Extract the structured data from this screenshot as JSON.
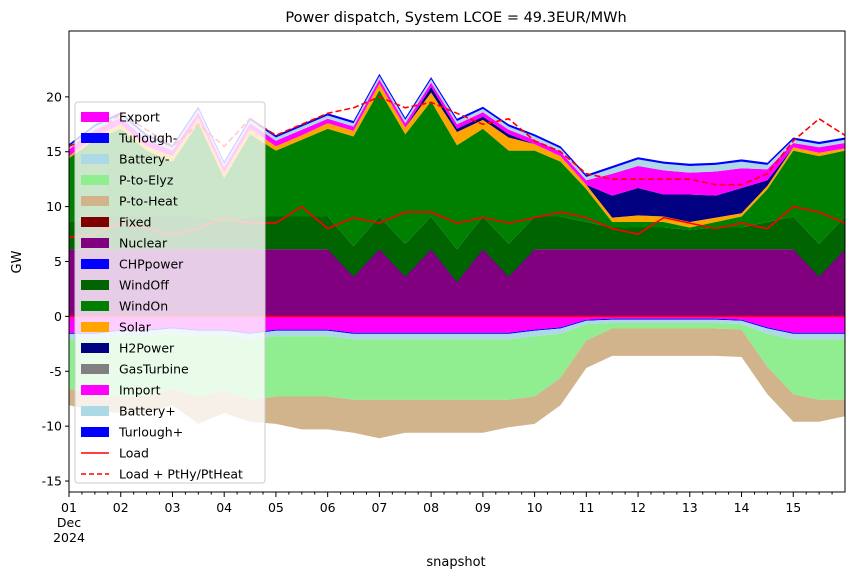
{
  "chart_data": {
    "type": "area",
    "title": "Power dispatch, System LCOE = 49.3EUR/MWh",
    "xlabel": "snapshot",
    "ylabel": "GW",
    "ylim": [
      -16,
      26
    ],
    "xlim": [
      0,
      15
    ],
    "yticks": [
      -15,
      -10,
      -5,
      0,
      5,
      10,
      15,
      20
    ],
    "x_tick_labels": [
      {
        "day": 0,
        "lines": [
          "01",
          "Dec",
          "2024"
        ]
      },
      {
        "day": 1,
        "lines": [
          "02"
        ]
      },
      {
        "day": 2,
        "lines": [
          "03"
        ]
      },
      {
        "day": 3,
        "lines": [
          "04"
        ]
      },
      {
        "day": 4,
        "lines": [
          "05"
        ]
      },
      {
        "day": 5,
        "lines": [
          "06"
        ]
      },
      {
        "day": 6,
        "lines": [
          "07"
        ]
      },
      {
        "day": 7,
        "lines": [
          "08"
        ]
      },
      {
        "day": 8,
        "lines": [
          "09"
        ]
      },
      {
        "day": 9,
        "lines": [
          "10"
        ]
      },
      {
        "day": 10,
        "lines": [
          "11"
        ]
      },
      {
        "day": 11,
        "lines": [
          "12"
        ]
      },
      {
        "day": 12,
        "lines": [
          "13"
        ]
      },
      {
        "day": 13,
        "lines": [
          "14"
        ]
      },
      {
        "day": 14,
        "lines": [
          "15"
        ]
      }
    ],
    "legend_position": "left",
    "grid": false,
    "x": [
      0,
      0.5,
      1,
      1.5,
      2,
      2.5,
      3,
      3.5,
      4,
      4.5,
      5,
      5.5,
      6,
      6.5,
      7,
      7.5,
      8,
      8.5,
      9,
      9.5,
      10,
      10.5,
      11,
      11.5,
      12,
      12.5,
      13,
      13.5,
      14,
      14.5,
      15
    ],
    "positive_series": [
      {
        "name": "Nuclear",
        "color": "#800080",
        "values": [
          6.1,
          6.1,
          6.1,
          6.1,
          6.1,
          6.1,
          6.1,
          6.1,
          6.1,
          6.1,
          6.1,
          6.1,
          6.1,
          6.1,
          6.1,
          6.1,
          6.1,
          6.1,
          6.1,
          6.1,
          6.1,
          6.1,
          6.1,
          6.1,
          6.1,
          6.1,
          6.1,
          6.1,
          6.1,
          6.1,
          6.1
        ]
      },
      {
        "name": "CHPpower",
        "color": "#0000ff",
        "values": [
          0,
          0,
          0,
          0,
          0,
          0,
          0,
          0,
          0,
          0,
          0,
          -2.5,
          0,
          -2.5,
          0,
          -3,
          0,
          -2.5,
          0,
          0,
          0,
          0,
          0,
          0,
          0,
          0,
          0,
          0,
          0,
          -2.5,
          0
        ]
      },
      {
        "name": "WindOff",
        "color": "#006400",
        "values": [
          2.5,
          3,
          3,
          3,
          3,
          3,
          2.5,
          3,
          3,
          3,
          3,
          2.8,
          3,
          3,
          3,
          3,
          3,
          3,
          3,
          3,
          2.5,
          2,
          2,
          2,
          1.8,
          2,
          2,
          2.5,
          3,
          3,
          3
        ]
      },
      {
        "name": "WindOn",
        "color": "#008000",
        "values": [
          5.8,
          7,
          8,
          6,
          5,
          8.5,
          4,
          7.5,
          6,
          7,
          8,
          10,
          11.5,
          10,
          10.5,
          9.5,
          8,
          8.5,
          6,
          5,
          3,
          0.5,
          0.5,
          0.5,
          0.2,
          0.5,
          1,
          3,
          6,
          8,
          6
        ]
      },
      {
        "name": "Solar",
        "color": "#ffa500",
        "values": [
          0.2,
          0.3,
          0.4,
          0.4,
          0.5,
          0.5,
          0.5,
          0.5,
          0.4,
          0.4,
          0.5,
          0.5,
          0.6,
          0.6,
          0.8,
          1.2,
          0.8,
          1.2,
          0.6,
          0.5,
          0.4,
          0.4,
          0.6,
          0.5,
          0.5,
          0.4,
          0.3,
          0.3,
          0.3,
          0.3,
          0.2
        ]
      },
      {
        "name": "H2Power",
        "color": "#000080",
        "values": [
          0,
          0,
          0,
          0,
          0,
          0,
          0,
          0,
          0,
          0,
          0,
          0,
          0,
          0,
          0.5,
          0.3,
          0.3,
          0.3,
          0,
          0,
          0,
          2,
          2.5,
          2,
          2.5,
          2,
          2.3,
          0.5,
          0,
          0,
          0
        ]
      },
      {
        "name": "Import",
        "color": "#ff00ff",
        "values": [
          0.6,
          0.6,
          0.6,
          0.6,
          0.5,
          0.5,
          0.5,
          0.5,
          0.5,
          0.5,
          0.4,
          0.4,
          0.4,
          0.4,
          0.4,
          0.4,
          0.4,
          0.4,
          0.4,
          0.4,
          0.4,
          2,
          2,
          2.2,
          2,
          2.2,
          1.8,
          1,
          0.4,
          0.5,
          0.5
        ]
      },
      {
        "name": "Battery+",
        "color": "#add8e6",
        "values": [
          0.3,
          0.3,
          0.3,
          0.3,
          0.3,
          0.3,
          0.3,
          0.3,
          0.3,
          0.3,
          0.3,
          0.3,
          0.3,
          0.3,
          0.3,
          0.3,
          0.3,
          0.3,
          0.3,
          0.3,
          0.3,
          0.5,
          0.6,
          0.6,
          0.6,
          0.6,
          0.6,
          0.4,
          0.3,
          0.3,
          0.3
        ]
      },
      {
        "name": "Turlough+",
        "color": "#0000ff",
        "values": [
          0.2,
          0.2,
          0.2,
          0.2,
          0.2,
          0.2,
          0.2,
          0.2,
          0.2,
          0.2,
          0.2,
          0.2,
          0.2,
          0.2,
          0.2,
          0.2,
          0.2,
          0.2,
          0.2,
          0.2,
          0.2,
          0.2,
          0.2,
          0.2,
          0.2,
          0.2,
          0.2,
          0.2,
          0.2,
          0.2,
          0.2
        ]
      }
    ],
    "negative_series": [
      {
        "name": "Export",
        "color": "#ff00ff",
        "values": [
          -1.5,
          -1.5,
          -1.2,
          -1.2,
          -1,
          -1.2,
          -1.2,
          -1.5,
          -1.2,
          -1.2,
          -1.2,
          -1.5,
          -1.5,
          -1.5,
          -1.5,
          -1.5,
          -1.5,
          -1.5,
          -1.2,
          -1,
          -0.3,
          -0.2,
          -0.2,
          -0.2,
          -0.2,
          -0.2,
          -0.3,
          -1,
          -1.5,
          -1.5,
          -1.5
        ]
      },
      {
        "name": "Turlough-",
        "color": "#0000ff",
        "values": [
          -0.1,
          -0.1,
          -0.1,
          -0.1,
          -0.1,
          -0.1,
          -0.1,
          -0.1,
          -0.1,
          -0.1,
          -0.1,
          -0.1,
          -0.1,
          -0.1,
          -0.1,
          -0.1,
          -0.1,
          -0.1,
          -0.1,
          -0.1,
          -0.1,
          -0.1,
          -0.1,
          -0.1,
          -0.1,
          -0.1,
          -0.1,
          -0.1,
          -0.1,
          -0.1,
          -0.1
        ]
      },
      {
        "name": "Battery-",
        "color": "#add8e6",
        "values": [
          -0.5,
          -0.5,
          -0.5,
          -0.5,
          -0.5,
          -0.5,
          -0.5,
          -0.5,
          -0.5,
          -0.5,
          -0.5,
          -0.5,
          -0.5,
          -0.5,
          -0.5,
          -0.5,
          -0.5,
          -0.5,
          -0.5,
          -0.5,
          -0.3,
          -0.3,
          -0.3,
          -0.3,
          -0.3,
          -0.3,
          -0.3,
          -0.5,
          -0.5,
          -0.5,
          -0.5
        ]
      },
      {
        "name": "P-to-Elyz",
        "color": "#90ee90",
        "values": [
          -4.5,
          -5,
          -5.5,
          -5.5,
          -5,
          -5.5,
          -5,
          -5.5,
          -5.5,
          -5.5,
          -5.5,
          -5.5,
          -5.5,
          -5.5,
          -5.5,
          -5.5,
          -5.5,
          -5.5,
          -5.5,
          -4,
          -1.5,
          -0.5,
          -0.5,
          -0.5,
          -0.5,
          -0.5,
          -0.5,
          -3,
          -5,
          -5.5,
          -5.5
        ]
      },
      {
        "name": "P-to-Heat",
        "color": "#d2b48c",
        "values": [
          -1.5,
          -1.5,
          -1.5,
          -1.5,
          -1.5,
          -2.5,
          -2,
          -2,
          -2.5,
          -3,
          -3,
          -3,
          -3.5,
          -3,
          -3,
          -3,
          -3,
          -2.5,
          -2.5,
          -2.5,
          -2.5,
          -2.5,
          -2.5,
          -2.5,
          -2.5,
          -2.5,
          -2.5,
          -2.5,
          -2.5,
          -2,
          -1.5
        ]
      },
      {
        "name": "GasTurbine",
        "color": "#808080",
        "values": [
          0,
          0,
          0,
          0,
          0,
          0,
          0,
          0,
          0,
          0,
          0,
          0,
          0,
          0,
          0,
          0,
          0,
          0,
          0,
          0,
          0,
          0,
          0,
          0,
          0,
          0,
          0,
          0,
          0,
          0,
          0
        ]
      },
      {
        "name": "Fixed",
        "color": "#800000",
        "values": [
          0,
          0,
          0,
          0,
          0,
          0,
          0,
          0,
          0,
          0,
          0,
          0,
          0,
          0,
          0,
          0,
          0,
          0,
          0,
          0,
          0,
          0,
          0,
          0,
          0,
          0,
          0,
          0,
          0,
          0,
          0
        ]
      }
    ],
    "load_series": {
      "name": "Load",
      "color": "#ff0000",
      "values": [
        7.2,
        7.5,
        8.5,
        8,
        7.5,
        8,
        9,
        8.5,
        8.5,
        10,
        8,
        9,
        8.5,
        9.5,
        9.5,
        8.5,
        9,
        8.5,
        9,
        9.5,
        9,
        8,
        7.5,
        9,
        8.5,
        8,
        8.5,
        8,
        10,
        9.5,
        8.5
      ]
    },
    "load_total_series": {
      "name": "Load + PtHy/PtHeat",
      "color": "#ff0000",
      "style": "dashed",
      "values": [
        15.5,
        16.5,
        18.5,
        17,
        15.5,
        17.5,
        15.5,
        18,
        16.5,
        17.5,
        18.5,
        19,
        20,
        19,
        19.5,
        18.5,
        17.5,
        18,
        16,
        15,
        13,
        12.5,
        12.5,
        12.5,
        12.5,
        12,
        12,
        13,
        16,
        18,
        16.5
      ]
    },
    "legend": [
      {
        "label": "Export",
        "color": "#ff00ff",
        "kind": "patch"
      },
      {
        "label": "Turlough-",
        "color": "#0000ff",
        "kind": "patch"
      },
      {
        "label": "Battery-",
        "color": "#add8e6",
        "kind": "patch"
      },
      {
        "label": "P-to-Elyz",
        "color": "#90ee90",
        "kind": "patch"
      },
      {
        "label": "P-to-Heat",
        "color": "#d2b48c",
        "kind": "patch"
      },
      {
        "label": "Fixed",
        "color": "#800000",
        "kind": "patch"
      },
      {
        "label": "Nuclear",
        "color": "#800080",
        "kind": "patch"
      },
      {
        "label": "CHPpower",
        "color": "#0000ff",
        "kind": "patch"
      },
      {
        "label": "WindOff",
        "color": "#006400",
        "kind": "patch"
      },
      {
        "label": "WindOn",
        "color": "#008000",
        "kind": "patch"
      },
      {
        "label": "Solar",
        "color": "#ffa500",
        "kind": "patch"
      },
      {
        "label": "H2Power",
        "color": "#000080",
        "kind": "patch"
      },
      {
        "label": "GasTurbine",
        "color": "#808080",
        "kind": "patch"
      },
      {
        "label": "Import",
        "color": "#ff00ff",
        "kind": "patch"
      },
      {
        "label": "Battery+",
        "color": "#add8e6",
        "kind": "patch"
      },
      {
        "label": "Turlough+",
        "color": "#0000ff",
        "kind": "patch"
      },
      {
        "label": "Load",
        "color": "#ff0000",
        "kind": "line"
      },
      {
        "label": "Load + PtHy/PtHeat",
        "color": "#ff0000",
        "kind": "dashed"
      }
    ]
  }
}
